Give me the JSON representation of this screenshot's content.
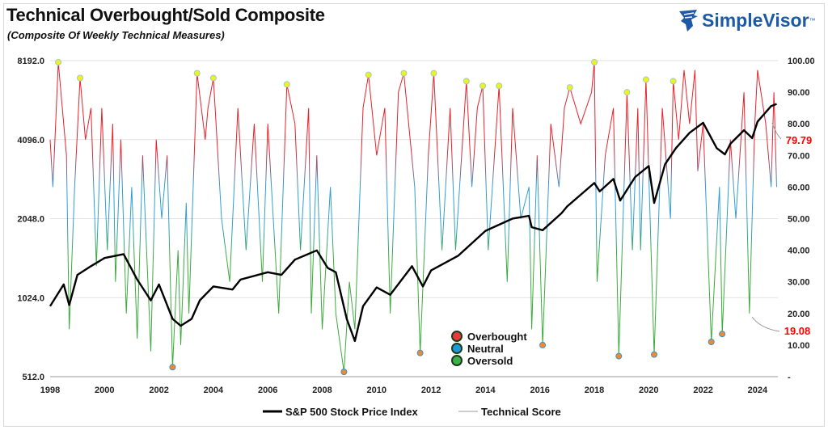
{
  "header": {
    "title": "Technical Overbought/Sold Composite",
    "subtitle": "(Composite Of Weekly Technical Measures)",
    "logo": "SimpleVisor",
    "logo_tm": "™"
  },
  "chart_data": {
    "type": "line",
    "title": "Technical Overbought/Sold Composite",
    "subtitle": "(Composite Of Weekly Technical Measures)",
    "x_ticks": [
      "1998",
      "2000",
      "2002",
      "2004",
      "2006",
      "2008",
      "2010",
      "2012",
      "2014",
      "2016",
      "2018",
      "2020",
      "2022",
      "2024"
    ],
    "xlim": [
      1998,
      2024.75
    ],
    "left_axis": {
      "scale": "log2",
      "ylim": [
        512,
        8192
      ],
      "ticks": [
        "512.0",
        "1024.0",
        "2048.0",
        "4096.0",
        "8192.0"
      ]
    },
    "right_axis": {
      "ylim": [
        0,
        100
      ],
      "ticks": [
        "-",
        "10.00",
        "20.00",
        "30.00",
        "40.00",
        "50.00",
        "60.00",
        "70.00",
        "80.00",
        "90.00",
        "100.00"
      ]
    },
    "grid": "horizontal",
    "legend_bottom": [
      {
        "name": "S&P 500 Stock Price Index",
        "color": "#000000"
      },
      {
        "name": "Technical Score",
        "color": "#999999"
      }
    ],
    "legend_inset": [
      {
        "name": "Overbought",
        "color": "#e83a3a"
      },
      {
        "name": "Neutral",
        "color": "#1e9ad6"
      },
      {
        "name": "Oversold",
        "color": "#3cb04a"
      }
    ],
    "annotations": [
      {
        "text": "79.79",
        "color": "#ff0000"
      },
      {
        "text": "19.08",
        "color": "#ff0000"
      }
    ],
    "series": [
      {
        "name": "S&P 500 Stock Price Index",
        "axis": "left",
        "color": "#000000",
        "points": [
          [
            1998.0,
            950
          ],
          [
            1998.5,
            1150
          ],
          [
            1998.7,
            960
          ],
          [
            1999.0,
            1250
          ],
          [
            1999.5,
            1350
          ],
          [
            2000.0,
            1450
          ],
          [
            2000.7,
            1500
          ],
          [
            2001.2,
            1200
          ],
          [
            2001.7,
            1000
          ],
          [
            2002.0,
            1150
          ],
          [
            2002.5,
            850
          ],
          [
            2002.8,
            800
          ],
          [
            2003.2,
            850
          ],
          [
            2003.5,
            1000
          ],
          [
            2004.0,
            1130
          ],
          [
            2004.7,
            1100
          ],
          [
            2005.0,
            1200
          ],
          [
            2006.0,
            1280
          ],
          [
            2006.5,
            1250
          ],
          [
            2007.0,
            1430
          ],
          [
            2007.8,
            1550
          ],
          [
            2008.2,
            1330
          ],
          [
            2008.5,
            1280
          ],
          [
            2008.9,
            850
          ],
          [
            2009.2,
            700
          ],
          [
            2009.5,
            950
          ],
          [
            2010.0,
            1120
          ],
          [
            2010.5,
            1050
          ],
          [
            2011.3,
            1350
          ],
          [
            2011.7,
            1130
          ],
          [
            2012.0,
            1300
          ],
          [
            2013.0,
            1480
          ],
          [
            2014.0,
            1840
          ],
          [
            2015.0,
            2050
          ],
          [
            2015.6,
            2100
          ],
          [
            2015.7,
            1900
          ],
          [
            2016.1,
            1850
          ],
          [
            2016.8,
            2150
          ],
          [
            2017.0,
            2280
          ],
          [
            2018.0,
            2800
          ],
          [
            2018.2,
            2600
          ],
          [
            2018.7,
            2900
          ],
          [
            2018.95,
            2400
          ],
          [
            2019.5,
            2950
          ],
          [
            2020.0,
            3250
          ],
          [
            2020.2,
            2350
          ],
          [
            2020.6,
            3300
          ],
          [
            2021.0,
            3800
          ],
          [
            2021.5,
            4350
          ],
          [
            2022.0,
            4750
          ],
          [
            2022.5,
            3800
          ],
          [
            2022.8,
            3600
          ],
          [
            2023.0,
            3950
          ],
          [
            2023.5,
            4450
          ],
          [
            2023.8,
            4150
          ],
          [
            2024.0,
            4800
          ],
          [
            2024.5,
            5500
          ],
          [
            2024.7,
            5600
          ]
        ]
      },
      {
        "name": "Technical Score",
        "axis": "right",
        "points": [
          [
            1998.0,
            75
          ],
          [
            1998.1,
            60
          ],
          [
            1998.3,
            99.5
          ],
          [
            1998.6,
            70
          ],
          [
            1998.7,
            15
          ],
          [
            1998.9,
            60
          ],
          [
            1999.1,
            94.5
          ],
          [
            1999.3,
            75
          ],
          [
            1999.5,
            85
          ],
          [
            1999.7,
            35
          ],
          [
            1999.9,
            85
          ],
          [
            2000.1,
            40
          ],
          [
            2000.3,
            80
          ],
          [
            2000.4,
            30
          ],
          [
            2000.6,
            75
          ],
          [
            2000.8,
            20
          ],
          [
            2001.0,
            60
          ],
          [
            2001.2,
            12
          ],
          [
            2001.4,
            70
          ],
          [
            2001.7,
            8
          ],
          [
            2001.9,
            75
          ],
          [
            2002.1,
            50
          ],
          [
            2002.3,
            70
          ],
          [
            2002.5,
            3
          ],
          [
            2002.7,
            40
          ],
          [
            2002.8,
            10
          ],
          [
            2003.0,
            55
          ],
          [
            2003.1,
            20
          ],
          [
            2003.4,
            96
          ],
          [
            2003.7,
            75
          ],
          [
            2003.8,
            85
          ],
          [
            2004.0,
            94.5
          ],
          [
            2004.3,
            50
          ],
          [
            2004.6,
            30
          ],
          [
            2004.9,
            85
          ],
          [
            2005.2,
            40
          ],
          [
            2005.5,
            80
          ],
          [
            2005.8,
            30
          ],
          [
            2006.0,
            80
          ],
          [
            2006.4,
            20
          ],
          [
            2006.7,
            92.5
          ],
          [
            2007.0,
            80
          ],
          [
            2007.2,
            40
          ],
          [
            2007.5,
            85
          ],
          [
            2007.6,
            20
          ],
          [
            2007.8,
            70
          ],
          [
            2008.0,
            15
          ],
          [
            2008.3,
            60
          ],
          [
            2008.5,
            20
          ],
          [
            2008.8,
            1.5
          ],
          [
            2009.0,
            30
          ],
          [
            2009.2,
            15
          ],
          [
            2009.5,
            85
          ],
          [
            2009.7,
            95.5
          ],
          [
            2010.0,
            70
          ],
          [
            2010.3,
            85
          ],
          [
            2010.5,
            20
          ],
          [
            2010.8,
            90
          ],
          [
            2011.0,
            96
          ],
          [
            2011.4,
            60
          ],
          [
            2011.6,
            7.5
          ],
          [
            2011.9,
            70
          ],
          [
            2012.1,
            96
          ],
          [
            2012.4,
            40
          ],
          [
            2012.7,
            85
          ],
          [
            2012.9,
            40
          ],
          [
            2013.3,
            93.5
          ],
          [
            2013.5,
            60
          ],
          [
            2013.7,
            85
          ],
          [
            2013.9,
            92
          ],
          [
            2014.1,
            40
          ],
          [
            2014.5,
            92
          ],
          [
            2014.8,
            30
          ],
          [
            2015.0,
            85
          ],
          [
            2015.3,
            50
          ],
          [
            2015.6,
            60
          ],
          [
            2015.7,
            15
          ],
          [
            2015.9,
            70
          ],
          [
            2016.1,
            10
          ],
          [
            2016.4,
            80
          ],
          [
            2016.7,
            60
          ],
          [
            2016.9,
            85
          ],
          [
            2017.1,
            91.5
          ],
          [
            2017.5,
            80
          ],
          [
            2017.9,
            90
          ],
          [
            2018.0,
            99.5
          ],
          [
            2018.1,
            30
          ],
          [
            2018.4,
            70
          ],
          [
            2018.7,
            85
          ],
          [
            2018.9,
            6.5
          ],
          [
            2019.2,
            90
          ],
          [
            2019.4,
            40
          ],
          [
            2019.6,
            85
          ],
          [
            2019.7,
            40
          ],
          [
            2019.9,
            94
          ],
          [
            2020.2,
            7
          ],
          [
            2020.5,
            85
          ],
          [
            2020.8,
            50
          ],
          [
            2020.9,
            93.5
          ],
          [
            2021.1,
            75
          ],
          [
            2021.3,
            97
          ],
          [
            2021.5,
            80
          ],
          [
            2021.7,
            97
          ],
          [
            2021.8,
            65
          ],
          [
            2022.0,
            80
          ],
          [
            2022.3,
            11
          ],
          [
            2022.6,
            60
          ],
          [
            2022.7,
            13.5
          ],
          [
            2023.0,
            75
          ],
          [
            2023.2,
            50
          ],
          [
            2023.5,
            90
          ],
          [
            2023.7,
            20
          ],
          [
            2023.9,
            80
          ],
          [
            2024.0,
            97
          ],
          [
            2024.3,
            80
          ],
          [
            2024.5,
            60
          ],
          [
            2024.6,
            90
          ],
          [
            2024.7,
            60
          ]
        ]
      }
    ],
    "overbought_markers": [
      [
        1998.3,
        99.5
      ],
      [
        1999.1,
        94.5
      ],
      [
        2003.4,
        96
      ],
      [
        2004.0,
        94.5
      ],
      [
        2006.7,
        92.5
      ],
      [
        2009.7,
        95.5
      ],
      [
        2011.0,
        96
      ],
      [
        2012.1,
        96
      ],
      [
        2013.3,
        93.5
      ],
      [
        2013.9,
        92
      ],
      [
        2014.5,
        92
      ],
      [
        2017.1,
        91.5
      ],
      [
        2018.0,
        99.5
      ],
      [
        2019.2,
        90
      ],
      [
        2019.9,
        94
      ],
      [
        2020.9,
        93.5
      ]
    ],
    "oversold_markers": [
      [
        2002.5,
        3
      ],
      [
        2008.8,
        1.5
      ],
      [
        2011.6,
        7.5
      ],
      [
        2016.1,
        10
      ],
      [
        2018.9,
        6.5
      ],
      [
        2020.2,
        7
      ],
      [
        2022.3,
        11
      ],
      [
        2022.7,
        13.5
      ]
    ],
    "marker_colors": {
      "overbought": "#f2f21a",
      "oversold": "#f08a2c"
    }
  }
}
